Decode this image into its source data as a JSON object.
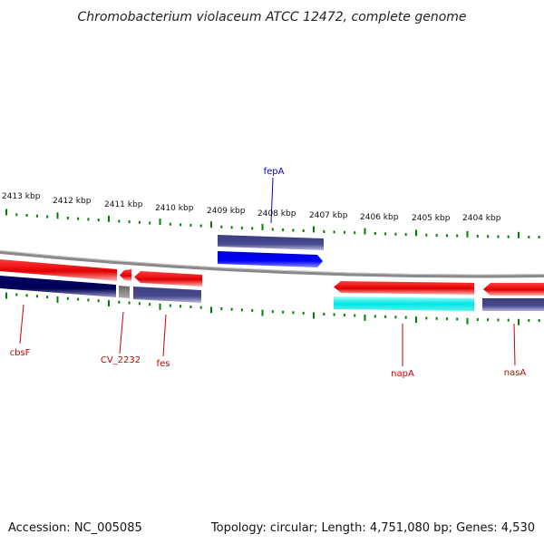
{
  "title": "Chromobacterium violaceum ATCC 12472, complete genome",
  "footer": {
    "accession": "Accession: NC_005085",
    "summary": "Topology: circular; Length: 4,751,080 bp; Genes: 4,530"
  },
  "scale_labels": [
    "2413 kbp",
    "2412 kbp",
    "2411 kbp",
    "2410 kbp",
    "2409 kbp",
    "2408 kbp",
    "2407 kbp",
    "2406 kbp",
    "2405 kbp",
    "2404 kbp"
  ],
  "gene_labels": {
    "fepA": "fepA",
    "cbsF": "cbsF",
    "CV_2232": "CV_2232",
    "fes": "fes",
    "napA": "napA",
    "nasA": "nasA"
  },
  "colors": {
    "forward_gene": "#e00000",
    "reverse_gene": "#000066",
    "blue_gene": "#0000ee",
    "cyan_gene": "#00e5e5",
    "grey_block": "#777777",
    "tick": "#008000",
    "backbone": "#8a8a8a",
    "label_red": "#cc0000",
    "label_blue": "#0000cc"
  }
}
